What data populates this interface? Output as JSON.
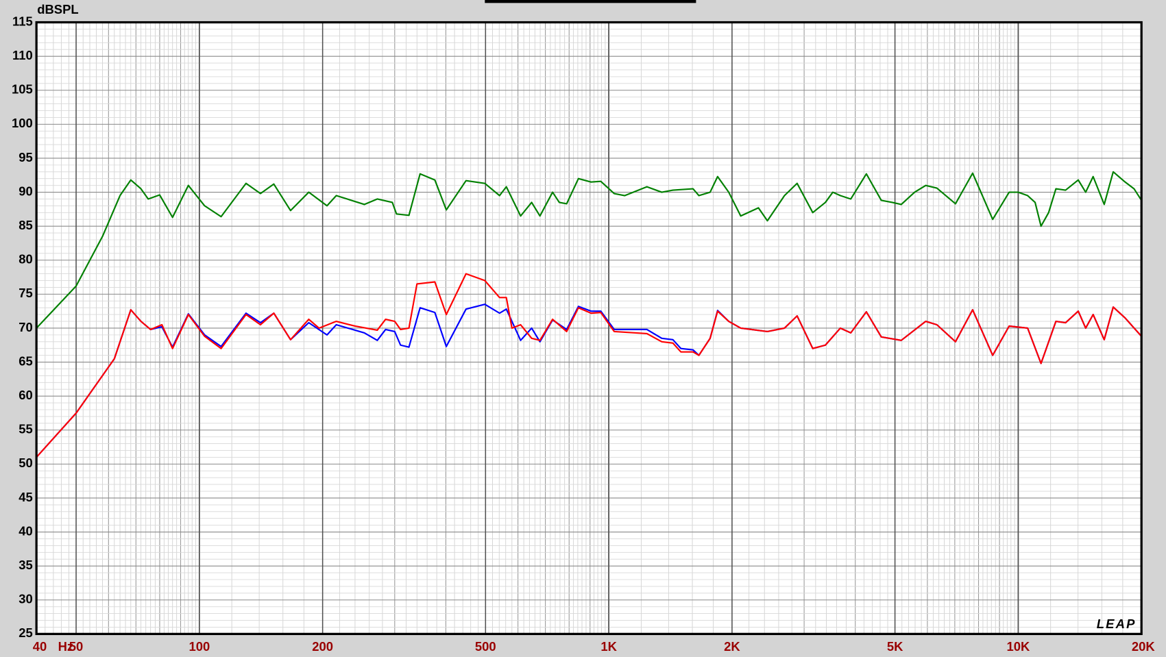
{
  "chart_data": {
    "type": "line",
    "y_label": "dBSPL",
    "x_unit": "Hz",
    "logo": "LEAP",
    "xscale": "log",
    "grid": true,
    "xlim": [
      40,
      20000
    ],
    "xticks": [
      40,
      50,
      100,
      200,
      500,
      {
        "value": 1000,
        "label": "1K"
      },
      {
        "value": 2000,
        "label": "2K"
      },
      {
        "value": 5000,
        "label": "5K"
      },
      {
        "value": 10000,
        "label": "10K"
      },
      {
        "value": 20000,
        "label": "20K"
      }
    ],
    "ylim": [
      25,
      115
    ],
    "yticks": [
      25,
      30,
      35,
      40,
      45,
      50,
      55,
      60,
      65,
      70,
      75,
      80,
      85,
      90,
      95,
      100,
      105,
      110,
      115
    ],
    "series": [
      {
        "color": "#008000",
        "x": [
          40,
          50,
          58,
          64,
          68,
          72,
          75,
          80,
          86,
          94,
          103,
          113,
          130,
          141,
          152,
          167,
          185,
          205,
          216,
          253,
          272,
          296,
          303,
          325,
          346,
          376,
          401,
          448,
          498,
          541,
          562,
          609,
          648,
          679,
          729,
          757,
          789,
          843,
          905,
          956,
          1031,
          1094,
          1239,
          1347,
          1434,
          1606,
          1660,
          1768,
          1844,
          1963,
          2100,
          2320,
          2440,
          2686,
          2884,
          3149,
          3381,
          3525,
          3678,
          3900,
          4257,
          4630,
          4924,
          5180,
          5584,
          5945,
          6329,
          7028,
          7739,
          8663,
          9503,
          10000,
          10545,
          10997,
          11368,
          11865,
          12362,
          13052,
          14016,
          14614,
          15240,
          16220,
          17063,
          18240,
          19185,
          20000
        ],
        "values": [
          70,
          76.2,
          83.5,
          89.5,
          91.8,
          90.5,
          89,
          89.6,
          86.3,
          91,
          88,
          86.4,
          91.3,
          89.8,
          91.2,
          87.3,
          90,
          88,
          89.5,
          88.2,
          89,
          88.5,
          86.8,
          86.6,
          92.7,
          91.8,
          87.4,
          91.7,
          91.3,
          89.5,
          90.8,
          86.5,
          88.5,
          86.5,
          90,
          88.5,
          88.3,
          92,
          91.5,
          91.6,
          89.8,
          89.5,
          90.8,
          90,
          90.3,
          90.5,
          89.5,
          90,
          92.3,
          90,
          86.5,
          87.7,
          85.8,
          89.5,
          91.3,
          87,
          88.5,
          90,
          89.5,
          89,
          92.7,
          88.8,
          88.5,
          88.2,
          90,
          91,
          90.6,
          88.3,
          92.8,
          86,
          90,
          90,
          89.5,
          88.5,
          85,
          87,
          90.5,
          90.3,
          91.8,
          90,
          92.3,
          88.2,
          93,
          91.5,
          90.5,
          88.8
        ]
      },
      {
        "color": "#0000ff",
        "x": [
          40,
          50,
          62,
          68,
          72,
          76,
          81,
          86,
          94,
          103,
          113,
          130,
          141,
          152,
          167,
          185,
          205,
          216,
          253,
          272,
          285,
          300,
          310,
          325,
          346,
          376,
          401,
          448,
          498,
          541,
          562,
          609,
          648,
          679,
          729,
          789,
          843,
          905,
          956,
          1031,
          1239,
          1347,
          1434,
          1500,
          1606,
          1660,
          1768,
          1844,
          1963,
          2100,
          2440,
          2686,
          2884,
          3149,
          3381,
          3678,
          3900,
          4257,
          4630,
          5180,
          5945,
          6329,
          7028,
          7739,
          8663,
          9503,
          10545,
          11368,
          12362,
          13052,
          14016,
          14614,
          15240,
          16220,
          17063,
          18240,
          20000
        ],
        "values": [
          51,
          57.5,
          65.5,
          72.7,
          71,
          69.8,
          70.2,
          67.2,
          72.1,
          69,
          67.3,
          72.2,
          70.8,
          72.2,
          68.3,
          70.8,
          69,
          70.5,
          69.3,
          68.2,
          69.8,
          69.5,
          67.5,
          67.2,
          73,
          72.3,
          67.3,
          72.8,
          73.5,
          72.2,
          72.8,
          68.2,
          70,
          68,
          71.2,
          69.8,
          73.2,
          72.5,
          72.5,
          69.8,
          69.8,
          68.5,
          68.3,
          67,
          66.8,
          66,
          68.5,
          72.6,
          71,
          70,
          69.5,
          70,
          71.8,
          67,
          67.5,
          70,
          69.3,
          72.4,
          68.7,
          68.2,
          71,
          70.5,
          68,
          72.7,
          66,
          70.3,
          70,
          64.8,
          71,
          70.8,
          72.5,
          70,
          72,
          68.3,
          73.1,
          71.5,
          68.8
        ]
      },
      {
        "color": "#ff0000",
        "x": [
          40,
          50,
          62,
          68,
          72,
          76,
          81,
          86,
          94,
          103,
          113,
          130,
          141,
          152,
          167,
          185,
          196,
          216,
          240,
          272,
          285,
          300,
          310,
          325,
          340,
          376,
          401,
          448,
          498,
          541,
          562,
          580,
          609,
          648,
          679,
          729,
          789,
          843,
          905,
          956,
          1031,
          1239,
          1347,
          1434,
          1500,
          1606,
          1660,
          1768,
          1844,
          1963,
          2100,
          2440,
          2686,
          2884,
          3149,
          3381,
          3678,
          3900,
          4257,
          4630,
          5180,
          5945,
          6329,
          7028,
          7739,
          8663,
          9503,
          10545,
          11368,
          12362,
          13052,
          14016,
          14614,
          15240,
          16220,
          17063,
          18240,
          20000
        ],
        "values": [
          51,
          57.5,
          65.5,
          72.7,
          71,
          69.8,
          70.5,
          67,
          72,
          68.8,
          67,
          72,
          70.5,
          72.2,
          68.3,
          71.3,
          70,
          71,
          70.3,
          69.7,
          71.3,
          71,
          69.8,
          70,
          76.5,
          76.8,
          72,
          78,
          77,
          74.5,
          74.5,
          70,
          70.5,
          68.5,
          68.2,
          71.3,
          69.5,
          73,
          72.2,
          72.3,
          69.5,
          69.2,
          68,
          67.8,
          66.5,
          66.5,
          66,
          68.5,
          72.5,
          71,
          70,
          69.5,
          70,
          71.8,
          67,
          67.5,
          70,
          69.3,
          72.4,
          68.7,
          68.2,
          71,
          70.5,
          68,
          72.7,
          66,
          70.3,
          70,
          64.8,
          71,
          70.8,
          72.5,
          70,
          72,
          68.3,
          73.1,
          71.5,
          68.8
        ]
      }
    ]
  }
}
